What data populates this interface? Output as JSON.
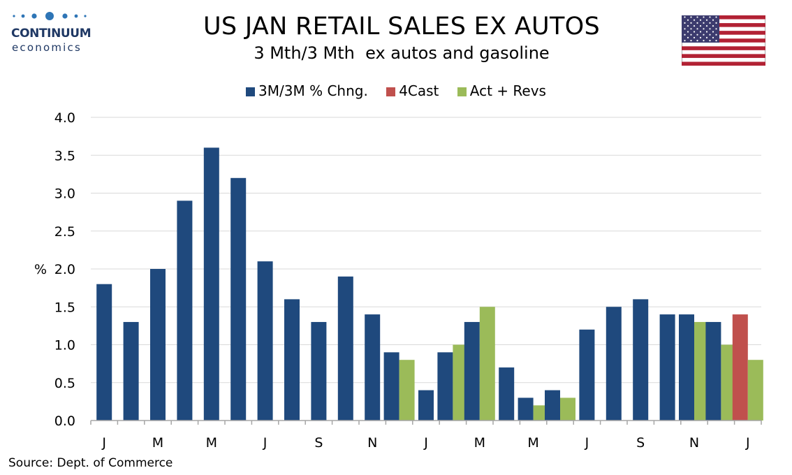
{
  "header": {
    "logo_name": "CONTINUUM",
    "logo_sub": "economics",
    "title": "US JAN RETAIL SALES EX AUTOS",
    "subtitle": "3 Mth/3 Mth  ex autos and gasoline"
  },
  "flag": {
    "icon": "us-flag-icon"
  },
  "colors": {
    "series_main": "#1f497d",
    "series_forecast": "#c0504d",
    "series_actual": "#9bbb59",
    "grid": "#d9d9d9",
    "logo": "#1f3864"
  },
  "chart_data": {
    "type": "bar",
    "ylabel": "%",
    "ylim": [
      0,
      4.0
    ],
    "yticks": [
      "0.0",
      "0.5",
      "1.0",
      "1.5",
      "2.0",
      "2.5",
      "3.0",
      "3.5",
      "4.0"
    ],
    "grid": true,
    "legend_position": "top-center",
    "xtick_labels": [
      "J",
      "",
      "M",
      "",
      "M",
      "",
      "J",
      "",
      "S",
      "",
      "N",
      "",
      "J",
      "",
      "M",
      "",
      "M",
      "",
      "J",
      "",
      "S",
      "",
      "N",
      "",
      "J"
    ],
    "series": [
      {
        "name": "3M/3M % Chng.",
        "color": "#1f497d",
        "values": [
          1.8,
          1.3,
          2.0,
          2.9,
          3.6,
          3.2,
          2.1,
          1.6,
          1.3,
          1.9,
          1.4,
          0.9,
          0.4,
          0.9,
          1.3,
          0.7,
          0.3,
          0.4,
          1.2,
          1.5,
          1.6,
          1.4,
          1.4,
          1.3,
          null
        ]
      },
      {
        "name": "4Cast",
        "color": "#c0504d",
        "values": [
          null,
          null,
          null,
          null,
          null,
          null,
          null,
          null,
          null,
          null,
          null,
          null,
          null,
          null,
          null,
          null,
          null,
          null,
          null,
          null,
          null,
          null,
          null,
          null,
          1.4
        ]
      },
      {
        "name": "Act + Revs",
        "color": "#9bbb59",
        "values": [
          null,
          null,
          null,
          null,
          null,
          null,
          null,
          null,
          null,
          null,
          null,
          0.8,
          null,
          1.0,
          1.5,
          null,
          0.2,
          0.3,
          null,
          null,
          null,
          null,
          1.3,
          1.0,
          0.8
        ]
      }
    ]
  },
  "footer": {
    "source": "Source: Dept. of Commerce"
  }
}
